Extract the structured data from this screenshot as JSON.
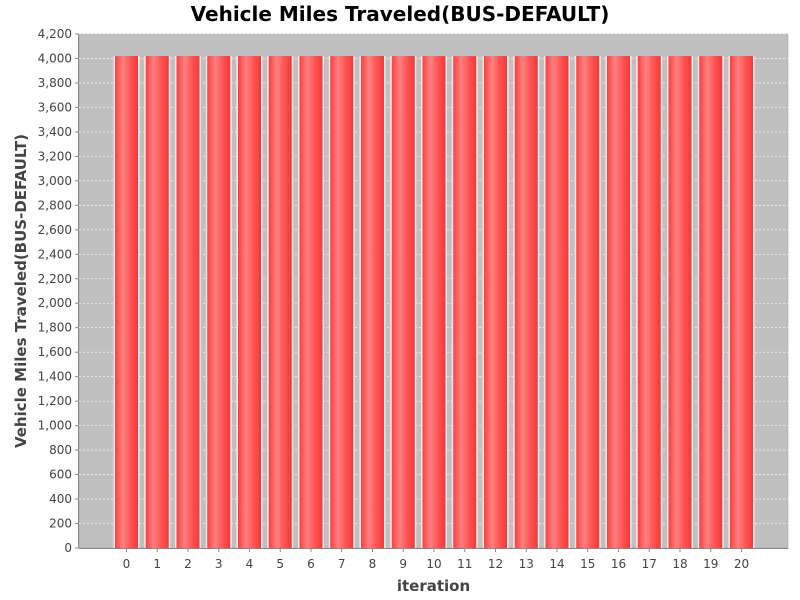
{
  "chart_data": {
    "type": "bar",
    "title": "Vehicle Miles Traveled(BUS-DEFAULT)",
    "xlabel": "iteration",
    "ylabel": "Vehicle Miles Traveled(BUS-DEFAULT)",
    "categories": [
      "0",
      "1",
      "2",
      "3",
      "4",
      "5",
      "6",
      "7",
      "8",
      "9",
      "10",
      "11",
      "12",
      "13",
      "14",
      "15",
      "16",
      "17",
      "18",
      "19",
      "20"
    ],
    "values": [
      4020,
      4020,
      4020,
      4020,
      4020,
      4020,
      4020,
      4020,
      4020,
      4020,
      4020,
      4020,
      4020,
      4020,
      4020,
      4020,
      4020,
      4020,
      4020,
      4020,
      4020
    ],
    "ylim": [
      0,
      4200
    ],
    "ytick_step": 200,
    "grid": true,
    "legend": "none",
    "colors": {
      "plot_background": "#c0c0c0",
      "bar": "#ff5555",
      "gridline": "#ffffff",
      "axis_text": "#444444"
    }
  }
}
